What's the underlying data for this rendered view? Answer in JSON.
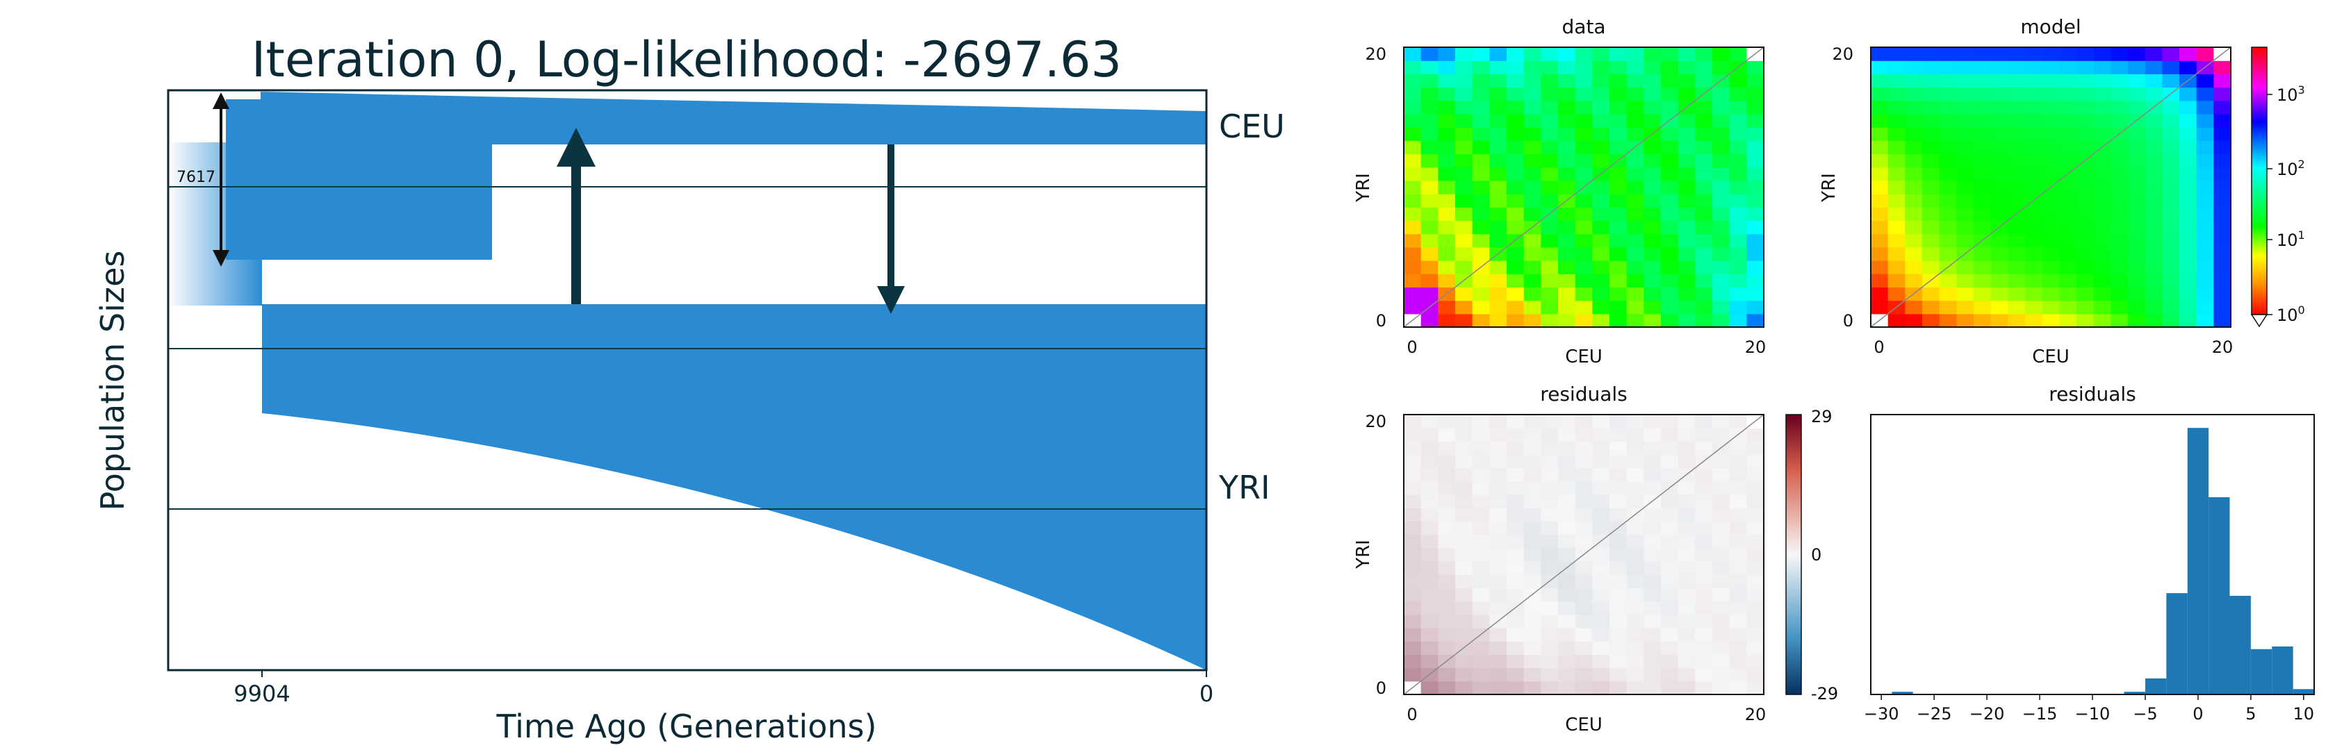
{
  "demography": {
    "title": "Iteration 0, Log-likelihood: -2697.63",
    "ylabel": "Population Sizes",
    "xlabel": "Time Ago (Generations)",
    "x_ticks": [
      "9904",
      "0"
    ],
    "populations": [
      "CEU",
      "YRI"
    ],
    "size_annotation": "7617",
    "colors": {
      "population": "#2a8bd3",
      "arrow": "#0a3440",
      "text": "#0b2a36"
    }
  },
  "panels": {
    "data_title": "data",
    "model_title": "model",
    "residuals_title": "residuals",
    "hist_title": "residuals",
    "x_label": "CEU",
    "y_label": "YRI",
    "axis_ticks": [
      "0",
      "20"
    ],
    "colorbar_log_ticks": [
      "10^0",
      "10^1",
      "10^2",
      "10^3"
    ],
    "colorbar_resid_ticks": [
      "29",
      "0",
      "-29"
    ]
  },
  "chart_data": [
    {
      "type": "heatmap",
      "title": "data",
      "xlabel": "CEU",
      "ylabel": "YRI",
      "xlim": [
        0,
        20
      ],
      "ylim": [
        0,
        20
      ],
      "scale": "log",
      "colorbar_range": [
        1,
        3000
      ]
    },
    {
      "type": "heatmap",
      "title": "model",
      "xlabel": "CEU",
      "ylabel": "YRI",
      "xlim": [
        0,
        20
      ],
      "ylim": [
        0,
        20
      ],
      "scale": "log"
    },
    {
      "type": "heatmap",
      "title": "residuals",
      "xlabel": "CEU",
      "ylabel": "YRI",
      "xlim": [
        0,
        20
      ],
      "ylim": [
        0,
        20
      ],
      "colorbar_range": [
        -29,
        29
      ]
    },
    {
      "type": "bar",
      "title": "residuals",
      "x_ticks": [
        -30,
        -25,
        -20,
        -15,
        -10,
        -5,
        0,
        5,
        10
      ],
      "bins": [
        {
          "x0": -29,
          "x1": -27,
          "count": 1
        },
        {
          "x0": -7,
          "x1": -5,
          "count": 1
        },
        {
          "x0": -5,
          "x1": -3,
          "count": 6
        },
        {
          "x0": -3,
          "x1": -1,
          "count": 38
        },
        {
          "x0": -1,
          "x1": 1,
          "count": 100
        },
        {
          "x0": 1,
          "x1": 3,
          "count": 74
        },
        {
          "x0": 3,
          "x1": 5,
          "count": 37
        },
        {
          "x0": 5,
          "x1": 7,
          "count": 17
        },
        {
          "x0": 7,
          "x1": 9,
          "count": 18
        },
        {
          "x0": 9,
          "x1": 11,
          "count": 2
        }
      ],
      "xlim": [
        -31,
        11
      ]
    }
  ]
}
